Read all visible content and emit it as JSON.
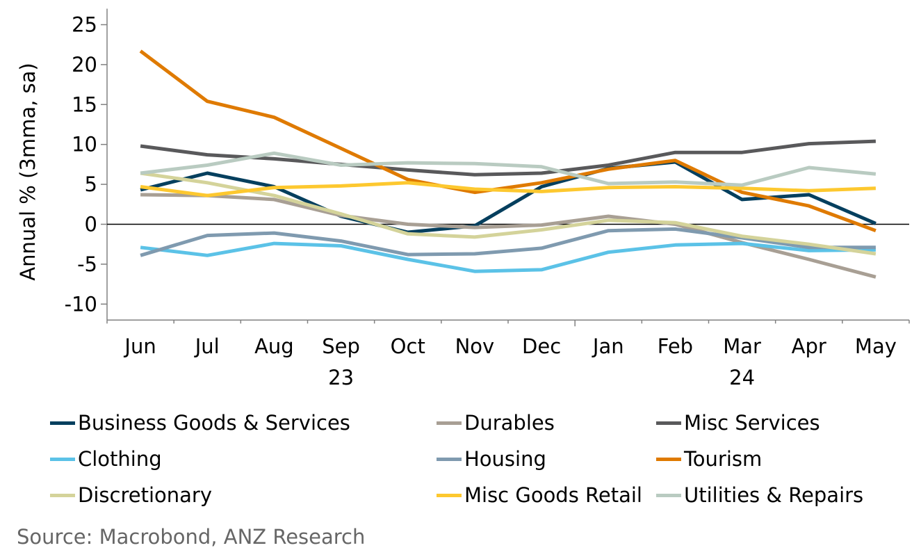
{
  "chart_data": {
    "type": "line",
    "title": "",
    "xlabel": "",
    "ylabel": "Annual % (3mma, sa)",
    "ylim": [
      -12,
      27
    ],
    "yticks": [
      25,
      20,
      15,
      10,
      5,
      0,
      -5,
      -10
    ],
    "ytick_labels": [
      "25",
      "20",
      "15",
      "10",
      "5",
      "0",
      "-5",
      "-10"
    ],
    "categories": [
      "Jun",
      "Jul",
      "Aug",
      "Sep",
      "Oct",
      "Nov",
      "Dec",
      "Jan",
      "Feb",
      "Mar",
      "Apr",
      "May"
    ],
    "year_labels": [
      {
        "label": "23",
        "under": "Sep"
      },
      {
        "label": "24",
        "under": "Mar"
      }
    ],
    "zero_line": true,
    "grid": false,
    "legend_position": "bottom",
    "series": [
      {
        "name": "Business Goods & Services",
        "color": "#053f5e",
        "values": [
          4.3,
          6.4,
          4.7,
          1.0,
          -1.0,
          -0.2,
          4.7,
          7.0,
          7.8,
          3.1,
          3.7,
          0.1
        ]
      },
      {
        "name": "Durables",
        "color": "#a89f94",
        "values": [
          3.7,
          3.6,
          3.1,
          1.1,
          0.0,
          -0.4,
          -0.1,
          1.0,
          0.0,
          -2.3,
          -4.4,
          -6.6
        ]
      },
      {
        "name": "Misc Services",
        "color": "#59595b",
        "values": [
          9.8,
          8.7,
          8.2,
          7.5,
          6.8,
          6.2,
          6.4,
          7.4,
          9.0,
          9.0,
          10.1,
          10.4
        ]
      },
      {
        "name": "Clothing",
        "color": "#5bc2e7",
        "values": [
          -2.9,
          -3.9,
          -2.4,
          -2.7,
          -4.4,
          -5.9,
          -5.7,
          -3.5,
          -2.6,
          -2.4,
          -3.3,
          -3.2
        ]
      },
      {
        "name": "Housing",
        "color": "#7f9aaf",
        "values": [
          -3.9,
          -1.4,
          -1.1,
          -2.1,
          -3.8,
          -3.7,
          -3.0,
          -0.8,
          -0.6,
          -1.7,
          -2.9,
          -2.9
        ]
      },
      {
        "name": "Tourism",
        "color": "#df7a00",
        "values": [
          21.7,
          15.4,
          13.4,
          9.5,
          5.6,
          4.0,
          5.2,
          6.9,
          8.0,
          4.0,
          2.3,
          -0.8
        ]
      },
      {
        "name": "Discretionary",
        "color": "#d4d39a",
        "values": [
          6.4,
          5.2,
          3.6,
          1.3,
          -1.2,
          -1.6,
          -0.7,
          0.5,
          0.2,
          -1.5,
          -2.5,
          -3.7
        ]
      },
      {
        "name": "Misc Goods Retail",
        "color": "#fdc82f",
        "values": [
          4.7,
          3.6,
          4.6,
          4.8,
          5.2,
          4.4,
          4.1,
          4.6,
          4.7,
          4.5,
          4.2,
          4.5
        ]
      },
      {
        "name": "Utilities & Repairs",
        "color": "#b9cbc1",
        "values": [
          6.4,
          7.4,
          8.9,
          7.4,
          7.7,
          7.6,
          7.2,
          5.1,
          5.3,
          4.9,
          7.1,
          6.3
        ]
      }
    ]
  },
  "legend": {
    "items": [
      {
        "label": "Business Goods & Services",
        "color": "#053f5e"
      },
      {
        "label": "Durables",
        "color": "#a89f94"
      },
      {
        "label": "Misc Services",
        "color": "#59595b"
      },
      {
        "label": "Clothing",
        "color": "#5bc2e7"
      },
      {
        "label": "Housing",
        "color": "#7f9aaf"
      },
      {
        "label": "Tourism",
        "color": "#df7a00"
      },
      {
        "label": "Discretionary",
        "color": "#d4d39a"
      },
      {
        "label": "Misc Goods Retail",
        "color": "#fdc82f"
      },
      {
        "label": "Utilities & Repairs",
        "color": "#b9cbc1"
      }
    ]
  },
  "source": "Source: Macrobond, ANZ Research"
}
